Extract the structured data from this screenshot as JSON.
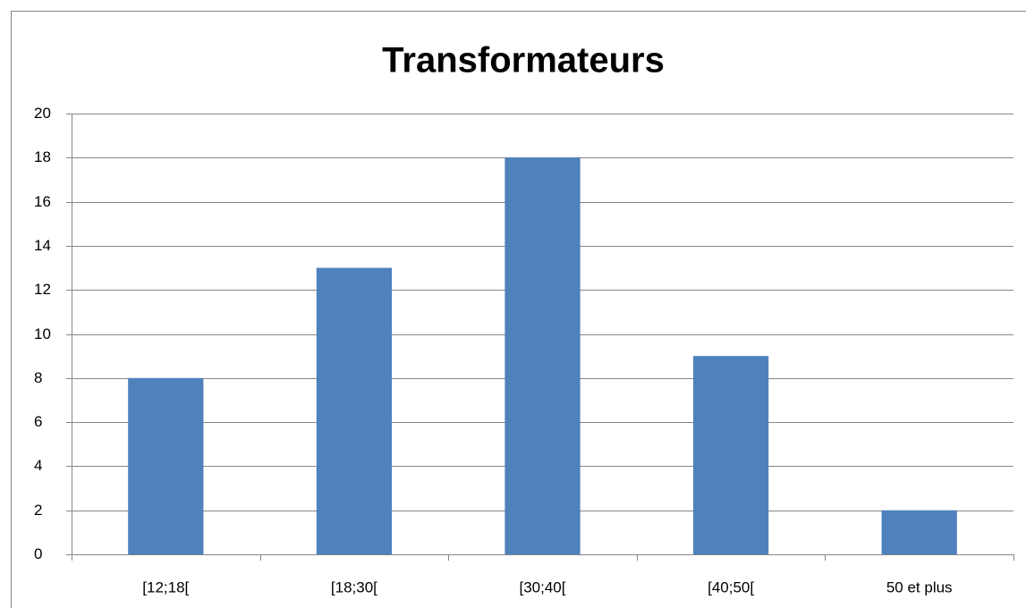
{
  "chart_data": {
    "type": "bar",
    "title": "Transformateurs",
    "categories": [
      "[12;18[",
      "[18;30[",
      "[30;40[",
      "[40;50[",
      "50 et plus"
    ],
    "values": [
      8,
      13,
      18,
      9,
      2
    ],
    "color": "#4f81bd",
    "ylim": [
      0,
      20
    ],
    "yticks": [
      0,
      2,
      4,
      6,
      8,
      10,
      12,
      14,
      16,
      18,
      20
    ],
    "grid": true
  }
}
